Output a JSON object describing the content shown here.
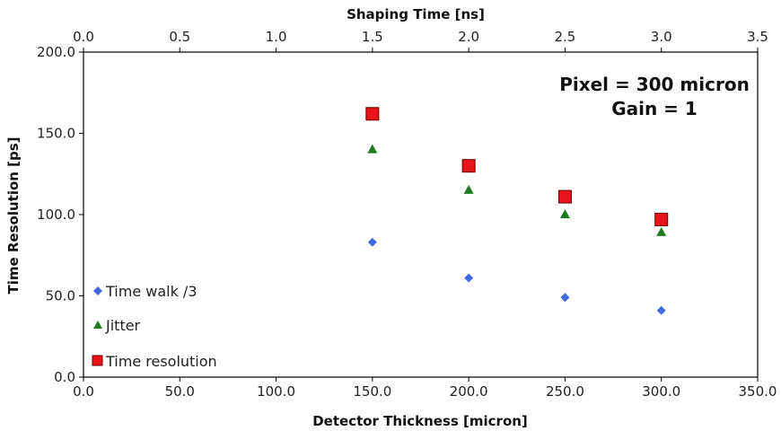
{
  "chart_data": {
    "type": "scatter",
    "xlabel": "Detector Thickness [micron]",
    "x2label": "Shaping Time [ns]",
    "ylabel": "Time Resolution [ps]",
    "xlim": [
      0,
      350
    ],
    "x2lim": [
      0,
      3.5
    ],
    "ylim": [
      0,
      200
    ],
    "xticks": [
      "0.0",
      "50.0",
      "100.0",
      "150.0",
      "200.0",
      "250.0",
      "300.0",
      "350.0"
    ],
    "x2ticks": [
      "0.0",
      "0.5",
      "1.0",
      "1.5",
      "2.0",
      "2.5",
      "3.0",
      "3.5"
    ],
    "yticks": [
      "0.0",
      "50.0",
      "100.0",
      "150.0",
      "200.0"
    ],
    "annotations": [
      "Pixel = 300 micron",
      "Gain = 1"
    ],
    "legend_position": "left",
    "grid": false,
    "series": [
      {
        "name": "Time walk /3",
        "marker": "diamond",
        "color": "#4169E1",
        "x": [
          150,
          200,
          250,
          300
        ],
        "y": [
          83,
          61,
          49,
          41
        ]
      },
      {
        "name": "Jitter",
        "marker": "triangle",
        "color": "#1E7B1E",
        "x": [
          150,
          200,
          250,
          300
        ],
        "y": [
          140,
          115,
          100,
          89
        ]
      },
      {
        "name": "Time resolution",
        "marker": "square",
        "color": "#E8141A",
        "x": [
          150,
          200,
          250,
          300
        ],
        "y": [
          162,
          130,
          111,
          97
        ]
      }
    ]
  }
}
